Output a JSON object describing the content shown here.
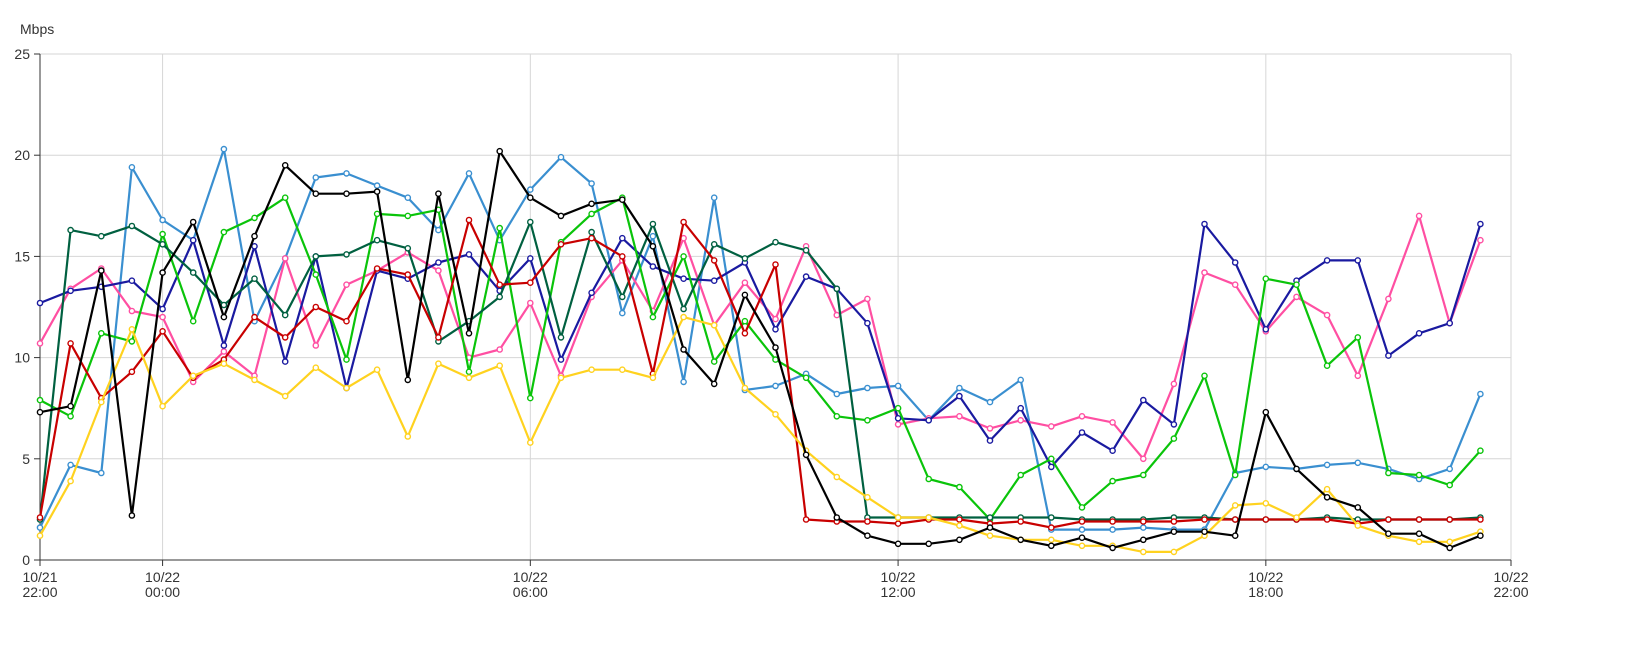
{
  "chart_data": {
    "type": "line",
    "title": "",
    "ylabel": "Mbps",
    "xlabel": "",
    "ylim": [
      0,
      25
    ],
    "yticks": [
      0,
      5,
      10,
      15,
      20,
      25
    ],
    "grid": true,
    "legend": "none",
    "x_hours": [
      -2,
      -1.5,
      -1,
      -0.5,
      0,
      0.5,
      1,
      1.5,
      2,
      2.5,
      3,
      3.5,
      4,
      4.5,
      5,
      5.5,
      6,
      6.5,
      7,
      7.5,
      8,
      8.5,
      9,
      9.5,
      10,
      10.5,
      11,
      11.5,
      12,
      12.5,
      13,
      13.5,
      14,
      14.5,
      15,
      15.5,
      16,
      16.5,
      17,
      17.5,
      18,
      18.5,
      19,
      19.5,
      20,
      20.5,
      21,
      21.5,
      22
    ],
    "xticks": [
      {
        "hour": -2,
        "line1": "10/21",
        "line2": "22:00"
      },
      {
        "hour": 0,
        "line1": "10/22",
        "line2": "00:00"
      },
      {
        "hour": 6,
        "line1": "10/22",
        "line2": "06:00"
      },
      {
        "hour": 12,
        "line1": "10/22",
        "line2": "12:00"
      },
      {
        "hour": 18,
        "line1": "10/22",
        "line2": "18:00"
      },
      {
        "hour": 22,
        "line1": "10/22",
        "line2": "22:00"
      }
    ],
    "series": [
      {
        "color": "#3a8fd0",
        "values": [
          1.6,
          4.7,
          4.3,
          19.4,
          16.8,
          15.8,
          20.3,
          11.8,
          14.9,
          18.9,
          19.1,
          18.5,
          17.9,
          16.3,
          19.1,
          15.8,
          18.3,
          19.9,
          18.6,
          12.2,
          16.0,
          8.8,
          17.9,
          8.4,
          8.6,
          9.2,
          8.2,
          8.5,
          8.6,
          6.9,
          8.5,
          7.8,
          8.9,
          1.5,
          1.5,
          1.5,
          1.6,
          1.5,
          1.5,
          4.3,
          4.6,
          4.5,
          4.7,
          4.8,
          4.5,
          4.0,
          4.5,
          8.2,
          null
        ]
      },
      {
        "color": "#ff4fa2",
        "values": [
          10.7,
          13.4,
          14.4,
          12.3,
          12.0,
          8.8,
          10.3,
          9.1,
          14.9,
          10.6,
          13.6,
          14.3,
          15.2,
          14.3,
          10.0,
          10.4,
          12.7,
          9.1,
          13.0,
          14.8,
          12.3,
          15.9,
          11.6,
          13.7,
          11.9,
          15.5,
          12.1,
          12.9,
          6.7,
          7.0,
          7.1,
          6.5,
          6.9,
          6.6,
          7.1,
          6.8,
          5.0,
          8.7,
          14.2,
          13.6,
          11.3,
          13.0,
          12.1,
          9.1,
          12.9,
          17.0,
          11.7,
          15.8,
          null
        ]
      },
      {
        "color": "#1a1aa0",
        "values": [
          12.7,
          13.3,
          13.5,
          13.8,
          12.4,
          15.8,
          10.6,
          15.5,
          9.8,
          15.0,
          8.5,
          14.3,
          13.9,
          14.7,
          15.1,
          13.3,
          14.9,
          9.9,
          13.2,
          15.9,
          14.5,
          13.9,
          13.8,
          14.7,
          11.4,
          14.0,
          13.4,
          11.7,
          7.0,
          6.9,
          8.1,
          5.9,
          7.5,
          4.6,
          6.3,
          5.4,
          7.9,
          6.7,
          16.6,
          14.7,
          11.4,
          13.8,
          14.8,
          14.8,
          10.1,
          11.2,
          11.7,
          16.6,
          null
        ]
      },
      {
        "color": "#0ac40a",
        "values": [
          7.9,
          7.1,
          11.2,
          10.8,
          16.1,
          11.8,
          16.2,
          16.9,
          17.9,
          14.1,
          9.9,
          17.1,
          17.0,
          17.3,
          9.3,
          16.4,
          8.0,
          15.7,
          17.1,
          17.9,
          12.0,
          15.0,
          9.8,
          11.8,
          9.9,
          9.0,
          7.1,
          6.9,
          7.5,
          4.0,
          3.6,
          2.0,
          4.2,
          5.0,
          2.6,
          3.9,
          4.2,
          6.0,
          9.1,
          4.2,
          13.9,
          13.6,
          9.6,
          11.0,
          4.3,
          4.2,
          3.7,
          5.4,
          null
        ]
      },
      {
        "color": "#006040",
        "values": [
          2.0,
          16.3,
          16.0,
          16.5,
          15.6,
          14.2,
          12.6,
          13.9,
          12.1,
          15.0,
          15.1,
          15.8,
          15.4,
          10.8,
          11.8,
          13.0,
          16.7,
          11.0,
          16.2,
          13.0,
          16.6,
          12.4,
          15.6,
          14.9,
          15.7,
          15.3,
          13.4,
          2.1,
          2.1,
          2.1,
          2.1,
          2.1,
          2.1,
          2.1,
          2.0,
          2.0,
          2.0,
          2.1,
          2.1,
          2.0,
          2.0,
          2.0,
          2.1,
          2.0,
          2.0,
          2.0,
          2.0,
          2.1,
          null
        ]
      },
      {
        "color": "#c80000",
        "values": [
          2.1,
          10.7,
          8.0,
          9.3,
          11.3,
          9.0,
          9.9,
          12.0,
          11.0,
          12.5,
          11.8,
          14.4,
          14.1,
          11.0,
          16.8,
          13.6,
          13.7,
          15.6,
          15.9,
          15.0,
          9.2,
          16.7,
          14.8,
          11.2,
          14.6,
          2.0,
          1.9,
          1.9,
          1.8,
          2.0,
          2.0,
          1.8,
          1.9,
          1.6,
          1.9,
          1.9,
          1.9,
          1.9,
          2.0,
          2.0,
          2.0,
          2.0,
          2.0,
          1.8,
          2.0,
          2.0,
          2.0,
          2.0,
          null
        ]
      },
      {
        "color": "#ffd21f",
        "values": [
          1.2,
          3.9,
          7.8,
          11.4,
          7.6,
          9.1,
          9.7,
          8.9,
          8.1,
          9.5,
          8.5,
          9.4,
          6.1,
          9.7,
          9.0,
          9.6,
          5.8,
          9.0,
          9.4,
          9.4,
          9.0,
          12.0,
          11.6,
          8.5,
          7.2,
          5.4,
          4.1,
          3.1,
          2.1,
          2.1,
          1.7,
          1.2,
          1.0,
          1.0,
          0.7,
          0.7,
          0.4,
          0.4,
          1.2,
          2.7,
          2.8,
          2.1,
          3.5,
          1.7,
          1.2,
          0.9,
          0.9,
          1.4,
          null
        ]
      },
      {
        "color": "#000000",
        "values": [
          7.3,
          7.6,
          14.3,
          2.2,
          14.2,
          16.7,
          12.0,
          16.0,
          19.5,
          18.1,
          18.1,
          18.2,
          8.9,
          18.1,
          11.2,
          20.2,
          17.9,
          17.0,
          17.6,
          17.8,
          15.5,
          10.4,
          8.7,
          13.1,
          10.5,
          5.2,
          2.1,
          1.2,
          0.8,
          0.8,
          1.0,
          1.6,
          1.0,
          0.7,
          1.1,
          0.6,
          1.0,
          1.4,
          1.4,
          1.2,
          7.3,
          4.5,
          3.1,
          2.6,
          1.3,
          1.3,
          0.6,
          1.2,
          null
        ]
      }
    ]
  }
}
